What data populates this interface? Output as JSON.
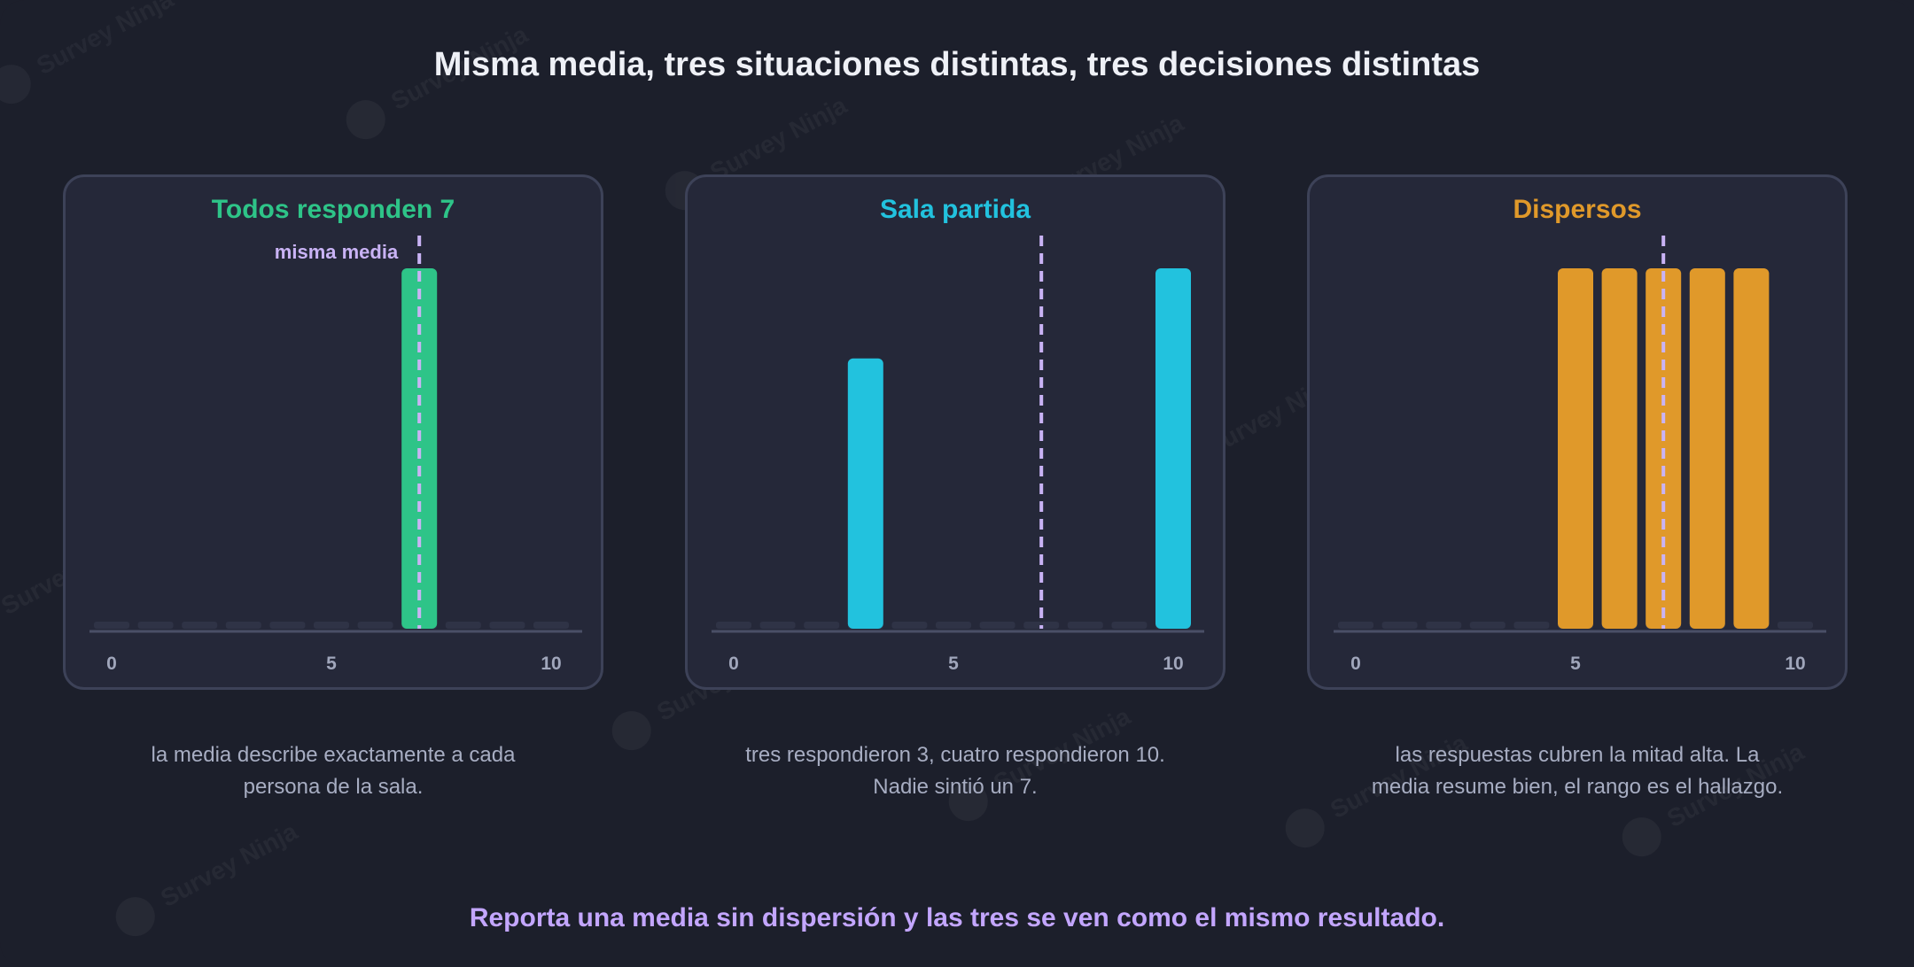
{
  "title": "Misma media, tres situaciones distintas, tres decisiones distintas",
  "footer": "Reporta una media sin dispersión y las tres se ven como el mismo resultado.",
  "watermark_text": "Survey Ninja",
  "colors": {
    "background": "#1c1f2b",
    "panel": "#252839",
    "panel_border": "#3d4258",
    "mean_line": "#c9b3f5",
    "empty_slot": "#2f3346",
    "axis": "#4a4f66",
    "tick": "#a0a6bb",
    "caption": "#a7adc2",
    "footer": "#c3a6ff"
  },
  "panels": [
    {
      "title": "Todos responden 7",
      "color": "#2ec488",
      "caption": "la media describe exactamente a cada persona de la sala.",
      "mean_label": "misma media"
    },
    {
      "title": "Sala partida",
      "color": "#22c2de",
      "caption": "tres respondieron 3, cuatro respondieron 10. Nadie sintió un 7.",
      "mean_label": ""
    },
    {
      "title": "Dispersos",
      "color": "#e0992a",
      "caption": "las respuestas cubren la mitad alta. La media resume bien, el rango es el hallazgo.",
      "mean_label": ""
    }
  ],
  "chart_data": [
    {
      "type": "bar",
      "title": "Todos responden 7",
      "categories": [
        0,
        1,
        2,
        3,
        4,
        5,
        6,
        7,
        8,
        9,
        10
      ],
      "values": [
        0,
        0,
        0,
        0,
        0,
        0,
        0,
        4,
        0,
        0,
        0
      ],
      "xticks": [
        "0",
        "5",
        "10"
      ],
      "xtick_values": [
        0,
        5,
        10
      ],
      "ylim": [
        0,
        4
      ],
      "mean": 7,
      "mean_label": "misma media",
      "color": "#2ec488"
    },
    {
      "type": "bar",
      "title": "Sala partida",
      "categories": [
        0,
        1,
        2,
        3,
        4,
        5,
        6,
        7,
        8,
        9,
        10
      ],
      "values": [
        0,
        0,
        0,
        3,
        0,
        0,
        0,
        0,
        0,
        0,
        4
      ],
      "xticks": [
        "0",
        "5",
        "10"
      ],
      "xtick_values": [
        0,
        5,
        10
      ],
      "ylim": [
        0,
        4
      ],
      "mean": 7,
      "color": "#22c2de"
    },
    {
      "type": "bar",
      "title": "Dispersos",
      "categories": [
        0,
        1,
        2,
        3,
        4,
        5,
        6,
        7,
        8,
        9,
        10
      ],
      "values": [
        0,
        0,
        0,
        0,
        0,
        1,
        1,
        1,
        1,
        1,
        0
      ],
      "xticks": [
        "0",
        "5",
        "10"
      ],
      "xtick_values": [
        0,
        5,
        10
      ],
      "ylim": [
        0,
        1
      ],
      "mean": 7,
      "color": "#e0992a"
    }
  ]
}
